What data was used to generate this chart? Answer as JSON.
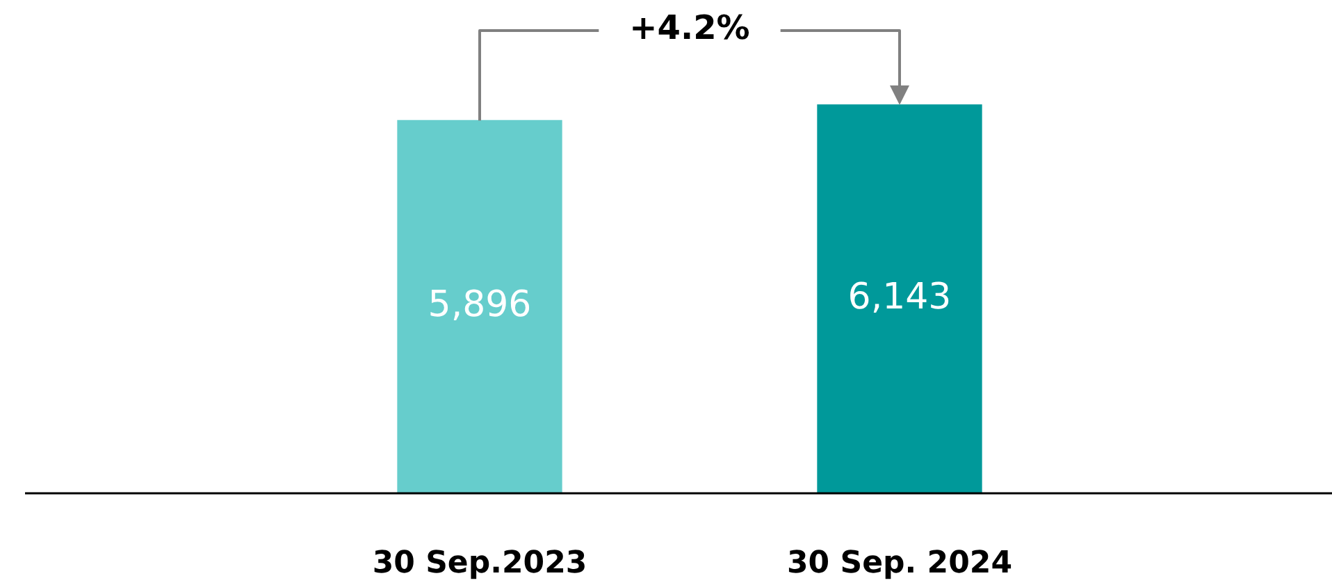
{
  "chart_data": {
    "type": "bar",
    "categories": [
      "30 Sep.2023",
      "30 Sep. 2024"
    ],
    "values": [
      5896,
      6143
    ],
    "colors": [
      "#66cdcc",
      "#00999a"
    ],
    "value_labels": [
      "5,896",
      "6,143"
    ],
    "annotations": [
      "+4.2%"
    ]
  }
}
